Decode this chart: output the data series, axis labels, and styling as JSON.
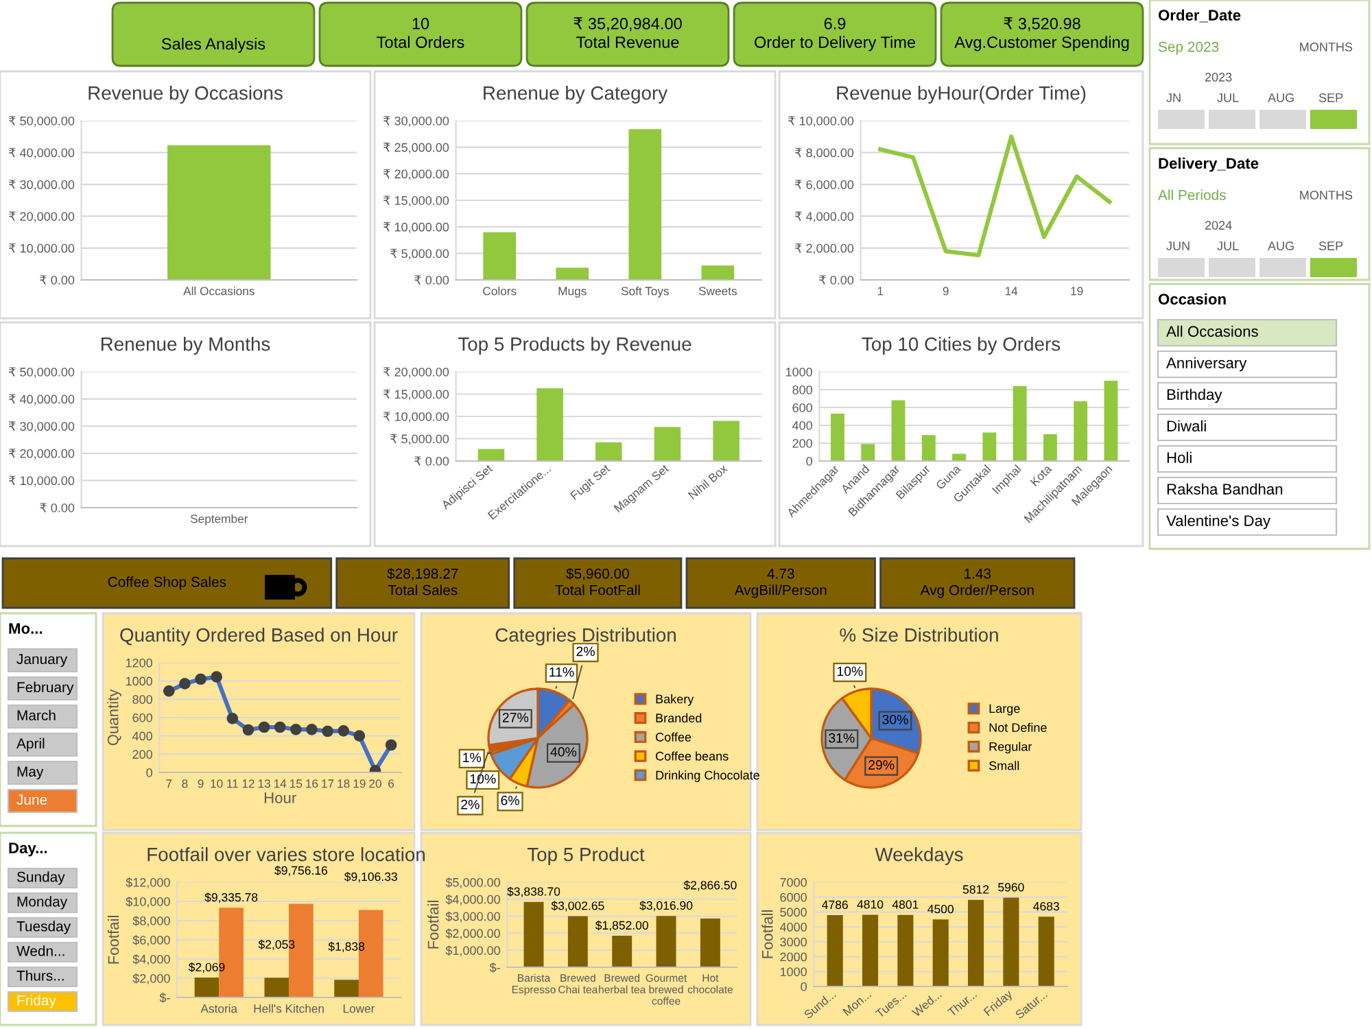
{
  "chart_data": [
    {
      "type": "other",
      "annotations": [
        "Sales Analysis",
        "10\nTotal Orders",
        "₹ 35,20,984.00\nTotal Revenue",
        "6.9\nOrder to Delivery Time",
        "₹ 3,520.98\nAvg.Customer Spending"
      ]
    },
    {
      "type": "bar",
      "title": "Revenue by Occasions",
      "categories": [
        "All Occasions"
      ],
      "values": [
        42300
      ],
      "color": "#92c83e",
      "ylim": [
        0,
        50000
      ],
      "yticks": [
        {
          "value": 0,
          "label": "₹ 0.00"
        },
        {
          "value": 10000,
          "label": "₹ 10,000.00"
        },
        {
          "value": 20000,
          "label": "₹ 20,000.00"
        },
        {
          "value": 30000,
          "label": "₹ 30,000.00"
        },
        {
          "value": 40000,
          "label": "₹ 40,000.00"
        },
        {
          "value": 50000,
          "label": "₹ 50,000.00"
        }
      ],
      "grid": "y"
    },
    {
      "type": "bar",
      "title": "Renenue by Category",
      "categories": [
        "Colors",
        "Mugs",
        "Soft Toys",
        "Sweets"
      ],
      "values": [
        9000,
        2300,
        28400,
        2700
      ],
      "color": "#92c83e",
      "ylim": [
        0,
        30000
      ],
      "yticks": [
        {
          "value": 0,
          "label": "₹ 0.00"
        },
        {
          "value": 5000,
          "label": "₹ 5,000.00"
        },
        {
          "value": 10000,
          "label": "₹ 10,000.00"
        },
        {
          "value": 15000,
          "label": "₹ 15,000.00"
        },
        {
          "value": 20000,
          "label": "₹ 20,000.00"
        },
        {
          "value": 25000,
          "label": "₹ 25,000.00"
        },
        {
          "value": 30000,
          "label": "₹ 30,000.00"
        }
      ],
      "grid": "y"
    },
    {
      "type": "line",
      "title": "Revenue byHour(Order Time)",
      "categories": [
        "1",
        null,
        "9",
        null,
        "14",
        null,
        "19",
        null
      ],
      "values": [
        8200,
        7700,
        1800,
        1550,
        9000,
        2700,
        6500,
        4900
      ],
      "color": "#92c83e",
      "ylim": [
        0,
        10000
      ],
      "yticks": [
        {
          "value": 0,
          "label": "₹ 0.00"
        },
        {
          "value": 2000,
          "label": "₹ 2,000.00"
        },
        {
          "value": 4000,
          "label": "₹ 4,000.00"
        },
        {
          "value": 6000,
          "label": "₹ 6,000.00"
        },
        {
          "value": 8000,
          "label": "₹ 8,000.00"
        },
        {
          "value": 10000,
          "label": "₹ 10,000.00"
        }
      ],
      "grid": "y"
    },
    {
      "type": "bar",
      "title": "Renenue by Months",
      "categories": [
        "September"
      ],
      "values": [
        null
      ],
      "color": "#92c83e",
      "ylim": [
        0,
        50000
      ],
      "yticks": [
        {
          "value": 0,
          "label": "₹ 0.00"
        },
        {
          "value": 10000,
          "label": "₹ 10,000.00"
        },
        {
          "value": 20000,
          "label": "₹ 20,000.00"
        },
        {
          "value": 30000,
          "label": "₹ 30,000.00"
        },
        {
          "value": 40000,
          "label": "₹ 40,000.00"
        },
        {
          "value": 50000,
          "label": "₹ 50,000.00"
        }
      ],
      "grid": "y"
    },
    {
      "type": "bar",
      "title": "Top 5 Products by Revenue",
      "categories": [
        "Adipisci Set",
        "Exercitatione...",
        "Fugit Set",
        "Magnam Set",
        "Nihil Box"
      ],
      "values": [
        2700,
        16300,
        4200,
        7600,
        9000
      ],
      "color": "#92c83e",
      "ylim": [
        0,
        20000
      ],
      "yticks": [
        {
          "value": 0,
          "label": "₹ 0.00"
        },
        {
          "value": 5000,
          "label": "₹ 5,000.00"
        },
        {
          "value": 10000,
          "label": "₹ 10,000.00"
        },
        {
          "value": 15000,
          "label": "₹ 15,000.00"
        },
        {
          "value": 20000,
          "label": "₹ 20,000.00"
        }
      ],
      "grid": "y"
    },
    {
      "type": "bar",
      "title": "Top 10 Cities by Orders",
      "categories": [
        "Ahmednagar",
        "Anand",
        "Bidhannagar",
        "Bilaspur",
        "Guna",
        "Guntakal",
        "Imphal",
        "Kota",
        "Machilipatnam",
        "Malegaon"
      ],
      "values": [
        530,
        190,
        680,
        290,
        80,
        320,
        840,
        300,
        670,
        900
      ],
      "color": "#92c83e",
      "ylim": [
        0,
        1000
      ],
      "yticks": [
        0,
        200,
        400,
        600,
        800,
        1000
      ],
      "grid": "y"
    },
    {
      "type": "other",
      "title": "Order_Date",
      "annotations": [
        "Sep 2023",
        "MONTHS",
        "2023",
        "JN",
        "JUL",
        "AUG",
        "SEP"
      ]
    },
    {
      "type": "other",
      "title": "Delivery_Date",
      "annotations": [
        "All Periods",
        "MONTHS",
        "2024",
        "JUN",
        "JUL",
        "AUG",
        "SEP"
      ]
    },
    {
      "type": "other",
      "title": "Occasion",
      "annotations": [
        "All Occasions",
        "Anniversary",
        "Birthday",
        "Diwali",
        "Holi",
        "Raksha Bandhan",
        "Valentine's Day"
      ]
    },
    {
      "type": "other",
      "annotations": [
        "Coffee Shop Sales",
        "$28,198.27\nTotal Sales",
        "$5,960.00\nTotal FootFall",
        "4.73\nAvgBill/Person",
        "1.43\nAvg Order/Person"
      ]
    },
    {
      "type": "other",
      "title": "Mo...",
      "annotations": [
        "January",
        "February",
        "March",
        "April",
        "May",
        "June"
      ]
    },
    {
      "type": "line",
      "title": "Quantity Ordered Based on Hour",
      "xlabel": "Hour",
      "ylabel": "Quantity",
      "categories": [
        "7",
        "8",
        "9",
        "10",
        "11",
        "12",
        "13",
        "14",
        "15",
        "16",
        "17",
        "18",
        "19",
        "20",
        "6"
      ],
      "values": [
        890,
        970,
        1020,
        1045,
        590,
        465,
        495,
        495,
        470,
        470,
        450,
        455,
        400,
        20,
        300
      ],
      "color": "#4472c4",
      "marker": "circle",
      "ylim": [
        0,
        1200
      ],
      "yticks": [
        0,
        200,
        400,
        600,
        800,
        1000,
        1200
      ],
      "grid": "y"
    },
    {
      "type": "pie",
      "title": "Categries Distribution",
      "categories": [
        "Bakery",
        "Branded",
        "Coffee",
        "Coffee beans",
        "Drinking Chocolate",
        null,
        null,
        null
      ],
      "values": [
        11,
        2,
        40,
        6,
        10,
        1,
        2,
        27
      ],
      "value_labels": [
        "11%",
        "2%",
        "40%",
        "6%",
        "10%",
        "1%",
        "2%",
        "27%"
      ],
      "colors": [
        "#4472c4",
        "#ed7d31",
        "#a5a5a5",
        "#ffc000",
        "#5b9bd5",
        "#70ad47",
        "#c55a11",
        "#c9c9c9"
      ],
      "legend": "right"
    },
    {
      "type": "pie",
      "title": "% Size Distribution",
      "categories": [
        "Large",
        "Not Define",
        "Regular",
        "Small"
      ],
      "values": [
        30,
        29,
        31,
        10
      ],
      "value_labels": [
        "30%",
        "29%",
        "31%",
        "10%"
      ],
      "colors": [
        "#4472c4",
        "#ed7d31",
        "#a5a5a5",
        "#ffc000"
      ],
      "legend": "right"
    },
    {
      "type": "other",
      "title": "Day...",
      "annotations": [
        "Sunday",
        "Monday",
        "Tuesday",
        "Wedn...",
        "Thurs...",
        "Friday"
      ]
    },
    {
      "type": "bar",
      "title": "Footfail over varies store location",
      "ylabel": "Footfail",
      "categories": [
        "Astoria",
        "Hell's Kitchen",
        "Lower"
      ],
      "series": [
        {
          "color": "#7f6000",
          "values": [
            2069,
            2053,
            1838
          ],
          "value_labels": [
            "$2,069",
            "$2,053",
            "$1,838"
          ]
        },
        {
          "color": "#ed7d31",
          "values": [
            9335.78,
            9756.16,
            9106.33
          ],
          "value_labels": [
            "$9,335.78",
            "$9,756.16",
            "$9,106.33"
          ]
        }
      ],
      "ylim": [
        0,
        12000
      ],
      "yticks": [
        {
          "value": 0,
          "label": "$-"
        },
        {
          "value": 2000,
          "label": "$2,000"
        },
        {
          "value": 4000,
          "label": "$4,000"
        },
        {
          "value": 6000,
          "label": "$6,000"
        },
        {
          "value": 8000,
          "label": "$8,000"
        },
        {
          "value": 10000,
          "label": "$10,000"
        },
        {
          "value": 12000,
          "label": "$12,000"
        }
      ],
      "grid": "y"
    },
    {
      "type": "bar",
      "title": "Top 5 Product",
      "ylabel": "Footfail",
      "categories": [
        "Barista\nEspresso",
        "Brewed\nChai tea",
        "Brewed\nherbal tea",
        "Gourmet\nbrewed\ncoffee",
        "Hot\nchocolate"
      ],
      "values": [
        3838.7,
        3002.65,
        1852.0,
        3016.9,
        2866.5
      ],
      "value_labels": [
        "$3,838.70",
        "$3,002.65",
        "$1,852.00",
        "$3,016.90",
        "$2,866.50"
      ],
      "color": "#7f6000",
      "ylim": [
        0,
        5000
      ],
      "yticks": [
        {
          "value": 0,
          "label": "$-"
        },
        {
          "value": 1000,
          "label": "$1,000.00"
        },
        {
          "value": 2000,
          "label": "$2,000.00"
        },
        {
          "value": 3000,
          "label": "$3,000.00"
        },
        {
          "value": 4000,
          "label": "$4,000.00"
        },
        {
          "value": 5000,
          "label": "$5,000.00"
        }
      ],
      "grid": "y"
    },
    {
      "type": "bar",
      "title": "Weekdays",
      "ylabel": "Footfall",
      "categories": [
        "Sund...",
        "Mon...",
        "Tues...",
        "Wed...",
        "Thur...",
        "Friday",
        "Satur..."
      ],
      "values": [
        4786,
        4810,
        4801,
        4500,
        5812,
        5960,
        4683
      ],
      "data_labels": true,
      "color": "#7f6000",
      "ylim": [
        0,
        7000
      ],
      "yticks": [
        0,
        1000,
        2000,
        3000,
        4000,
        5000,
        6000,
        7000
      ],
      "grid": "y"
    }
  ]
}
